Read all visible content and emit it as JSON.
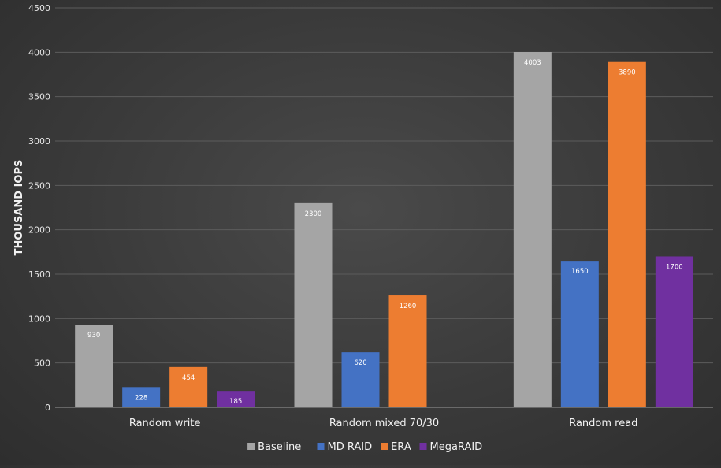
{
  "chart_data": {
    "type": "bar",
    "title": "",
    "xlabel": "",
    "ylabel": "THOUSAND IOPS",
    "ylim": [
      0,
      4500
    ],
    "yticks": [
      0,
      500,
      1000,
      1500,
      2000,
      2500,
      3000,
      3500,
      4000,
      4500
    ],
    "grid": true,
    "legend_position": "bottom",
    "categories": [
      "Random write",
      "Random mixed 70/30",
      "Random read"
    ],
    "series": [
      {
        "name": "Baseline",
        "color": "#a5a5a5",
        "values": [
          930,
          2300,
          4003
        ]
      },
      {
        "name": "MD RAID",
        "color": "#4472c4",
        "values": [
          228,
          620,
          1650
        ]
      },
      {
        "name": "ERA",
        "color": "#ed7d31",
        "values": [
          454,
          1260,
          3890
        ]
      },
      {
        "name": "MegaRAID",
        "color": "#7030a0",
        "values": [
          185,
          null,
          1700
        ]
      }
    ]
  }
}
